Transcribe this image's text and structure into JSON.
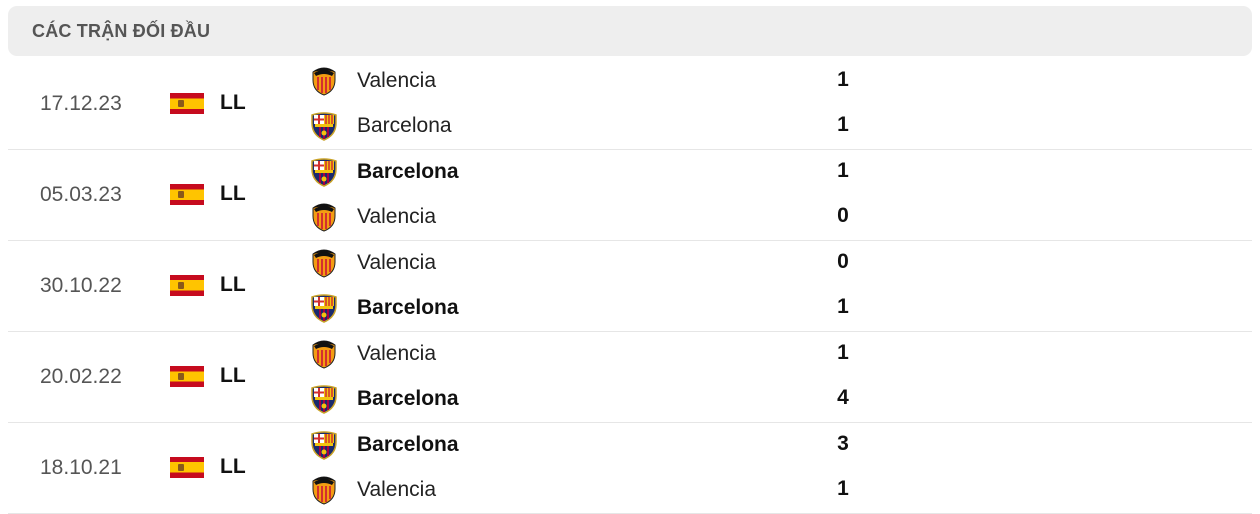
{
  "header": {
    "title": "CÁC TRẬN ĐỐI ĐẦU"
  },
  "matches": [
    {
      "date": "17.12.23",
      "league": "LL",
      "country_flag": "spain-flag",
      "teams": [
        {
          "name": "Valencia",
          "logo": "valencia",
          "score": "1",
          "winner": false
        },
        {
          "name": "Barcelona",
          "logo": "barcelona",
          "score": "1",
          "winner": false
        }
      ]
    },
    {
      "date": "05.03.23",
      "league": "LL",
      "country_flag": "spain-flag",
      "teams": [
        {
          "name": "Barcelona",
          "logo": "barcelona",
          "score": "1",
          "winner": true
        },
        {
          "name": "Valencia",
          "logo": "valencia",
          "score": "0",
          "winner": false
        }
      ]
    },
    {
      "date": "30.10.22",
      "league": "LL",
      "country_flag": "spain-flag",
      "teams": [
        {
          "name": "Valencia",
          "logo": "valencia",
          "score": "0",
          "winner": false
        },
        {
          "name": "Barcelona",
          "logo": "barcelona",
          "score": "1",
          "winner": true
        }
      ]
    },
    {
      "date": "20.02.22",
      "league": "LL",
      "country_flag": "spain-flag",
      "teams": [
        {
          "name": "Valencia",
          "logo": "valencia",
          "score": "1",
          "winner": false
        },
        {
          "name": "Barcelona",
          "logo": "barcelona",
          "score": "4",
          "winner": true
        }
      ]
    },
    {
      "date": "18.10.21",
      "league": "LL",
      "country_flag": "spain-flag",
      "teams": [
        {
          "name": "Barcelona",
          "logo": "barcelona",
          "score": "3",
          "winner": true
        },
        {
          "name": "Valencia",
          "logo": "valencia",
          "score": "1",
          "winner": false
        }
      ]
    }
  ]
}
